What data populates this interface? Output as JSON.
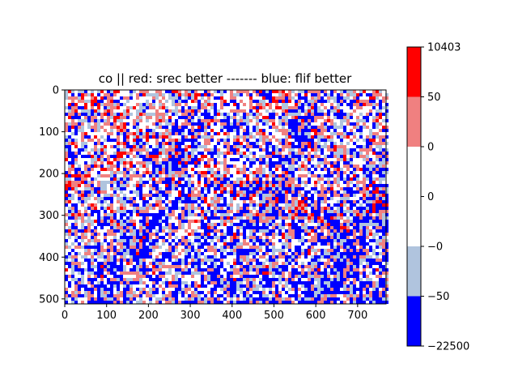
{
  "chart_data": {
    "type": "heatmap",
    "title": "co || red: srec better ------- blue: flif better",
    "xlabel": "",
    "ylabel": "",
    "image_width": 768,
    "image_height": 512,
    "xlim": [
      0,
      768
    ],
    "ylim": [
      512,
      0
    ],
    "x_ticks": [
      0,
      100,
      200,
      300,
      400,
      500,
      600,
      700
    ],
    "y_ticks": [
      0,
      100,
      200,
      300,
      400,
      500
    ],
    "grid": false,
    "colormap": {
      "type": "discrete",
      "colors": [
        "#0000ff",
        "#b0c4de",
        "#ffffff",
        "#ffffff",
        "#f08080",
        "#ff0000"
      ],
      "tick_labels": [
        "−22500",
        "−50",
        "−0",
        "0",
        "0",
        "50",
        "10403"
      ]
    }
  }
}
